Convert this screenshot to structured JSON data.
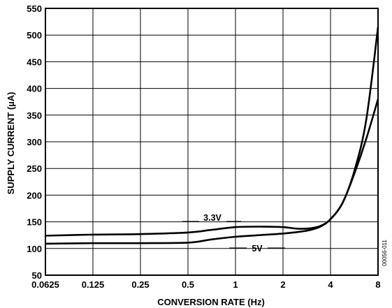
{
  "chart_data": {
    "type": "line",
    "xlabel": "CONVERSION RATE (Hz)",
    "ylabel": "SUPPLY CURRENT (µA)",
    "x_scale": "log2",
    "x_ticks": [
      0.0625,
      0.125,
      0.25,
      0.5,
      1,
      2,
      4,
      8
    ],
    "x_tick_labels": [
      "0.0625",
      "0.125",
      "0.25",
      "0.5",
      "1",
      "2",
      "4",
      "8"
    ],
    "y_ticks": [
      50,
      100,
      150,
      200,
      250,
      300,
      350,
      400,
      450,
      500,
      550
    ],
    "y_tick_labels": [
      "50",
      "100",
      "150",
      "200",
      "250",
      "300",
      "350",
      "400",
      "450",
      "500",
      "550"
    ],
    "xlim": [
      0.0625,
      8
    ],
    "ylim": [
      50,
      550
    ],
    "grid": true,
    "figure_id": "00056-011",
    "series": [
      {
        "name": "3.3V",
        "x": [
          0.0625,
          0.125,
          0.25,
          0.5,
          0.707,
          1,
          1.414,
          2,
          2.5,
          3,
          3.5,
          4,
          4.76,
          5.66,
          6.73,
          8
        ],
        "y": [
          124,
          126,
          127,
          130,
          135,
          140,
          141,
          140,
          137,
          138,
          143,
          155,
          185,
          245,
          340,
          515
        ]
      },
      {
        "name": "5V",
        "x": [
          0.0625,
          0.125,
          0.25,
          0.5,
          0.707,
          1,
          1.414,
          2,
          2.5,
          3,
          3.5,
          4,
          4.76,
          5.66,
          6.73,
          8
        ],
        "y": [
          109,
          110,
          110,
          111,
          117,
          122,
          125,
          128,
          131,
          135,
          142,
          155,
          185,
          240,
          305,
          380
        ]
      }
    ]
  }
}
